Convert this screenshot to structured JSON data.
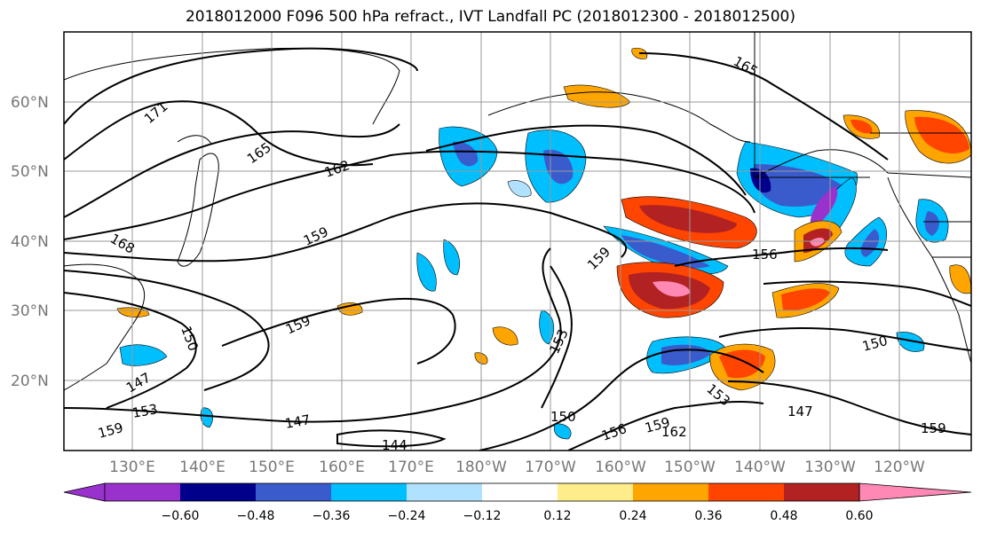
{
  "title": "2018012000 F096 500 hPa refract., IVT Landfall PC (2018012300 - 2018012500)",
  "lat_labels": [
    "60°N",
    "50°N",
    "40°N",
    "30°N",
    "20°N"
  ],
  "lon_labels": [
    "130°E",
    "140°E",
    "150°E",
    "160°E",
    "170°E",
    "180°W",
    "170°W",
    "160°W",
    "150°W",
    "140°W",
    "130°W",
    "120°W"
  ],
  "contour_labels": [
    "171",
    "165",
    "162",
    "168",
    "159",
    "159",
    "150",
    "147",
    "153",
    "159",
    "147",
    "144",
    "153",
    "159",
    "156",
    "150",
    "159",
    "162",
    "156",
    "153",
    "147",
    "150",
    "159",
    "165"
  ],
  "colorbar": {
    "ticks": [
      "−0.60",
      "−0.48",
      "−0.36",
      "−0.24",
      "−0.12",
      "0.12",
      "0.24",
      "0.36",
      "0.48",
      "0.60"
    ],
    "colors": [
      "#9932cc",
      "#00008b",
      "#3a5bcc",
      "#00bfff",
      "#b0e2ff",
      "#ffffff",
      "#ffec8b",
      "#ffa500",
      "#ff4500",
      "#b22222",
      "#ff88b4"
    ]
  }
}
